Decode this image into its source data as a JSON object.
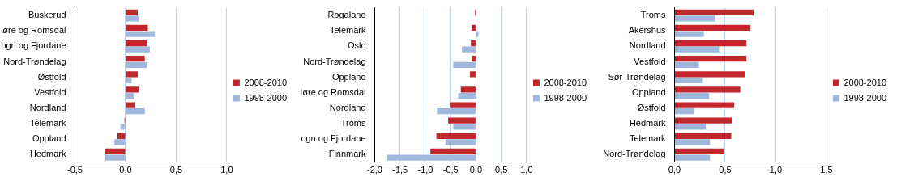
{
  "chart_data": [
    {
      "type": "bar",
      "orientation": "horizontal",
      "grid": true,
      "legend": "right",
      "categories": [
        "Buskerud",
        "Møre og Romsdal",
        "Sogn og Fjordane",
        "Nord-Trøndelag",
        "Østfold",
        "Vestfold",
        "Nordland",
        "Telemark",
        "Oppland",
        "Hedmark"
      ],
      "series": [
        {
          "name": "2008-2010",
          "color": "#c0282e",
          "values": [
            0.12,
            0.22,
            0.21,
            0.19,
            0.12,
            0.13,
            0.09,
            -0.01,
            -0.08,
            -0.2
          ]
        },
        {
          "name": "1998-2000",
          "color": "#9fb8dc",
          "values": [
            0.13,
            0.29,
            0.24,
            0.21,
            0.06,
            0.08,
            0.19,
            -0.05,
            -0.11,
            -0.2
          ]
        }
      ],
      "xlim": [
        -0.5,
        1.0
      ],
      "xticks": [
        {
          "value": -0.5,
          "label": "-0,5"
        },
        {
          "value": 0,
          "label": "0,0"
        },
        {
          "value": 0.5,
          "label": "0,5"
        },
        {
          "value": 1.0,
          "label": "1,0"
        }
      ]
    },
    {
      "type": "bar",
      "orientation": "horizontal",
      "grid": true,
      "legend": "right",
      "categories": [
        "Rogaland",
        "Telemark",
        "Oslo",
        "Nord-Trøndelag",
        "Oppland",
        "Møre og Romsdal",
        "Nordland",
        "Troms",
        "Sogn og Fjordane",
        "Finnmark"
      ],
      "series": [
        {
          "name": "2008-2010",
          "color": "#c0282e",
          "values": [
            -0.02,
            -0.08,
            -0.1,
            -0.08,
            -0.12,
            -0.3,
            -0.5,
            -0.55,
            -0.78,
            -0.9
          ]
        },
        {
          "name": "1998-2000",
          "color": "#9fb8dc",
          "values": [
            0.0,
            0.05,
            -0.28,
            -0.45,
            0.0,
            -0.35,
            -0.77,
            -0.45,
            -0.6,
            -1.75
          ]
        }
      ],
      "xlim": [
        -2.0,
        1.0
      ],
      "xticks": [
        {
          "value": -2.0,
          "label": "-2,0"
        },
        {
          "value": -1.5,
          "label": "-1,5"
        },
        {
          "value": -1.0,
          "label": "-1,0"
        },
        {
          "value": -0.5,
          "label": "-0,5"
        },
        {
          "value": 0,
          "label": "0,0"
        },
        {
          "value": 0.5,
          "label": "0,5"
        },
        {
          "value": 1.0,
          "label": "1,0"
        }
      ]
    },
    {
      "type": "bar",
      "orientation": "horizontal",
      "grid": true,
      "legend": "right",
      "categories": [
        "Troms",
        "Akershus",
        "Nordland",
        "Vestfold",
        "Sør-Trøndelag",
        "Oppland",
        "Østfold",
        "Hedmark",
        "Telemark",
        "Nord-Trøndelag"
      ],
      "series": [
        {
          "name": "2008-2010",
          "color": "#c0282e",
          "values": [
            0.78,
            0.75,
            0.71,
            0.71,
            0.7,
            0.65,
            0.59,
            0.57,
            0.56,
            0.49
          ]
        },
        {
          "name": "1998-2000",
          "color": "#9fb8dc",
          "values": [
            0.4,
            0.29,
            0.44,
            0.24,
            0.28,
            0.34,
            0.19,
            0.31,
            0.35,
            0.35
          ]
        }
      ],
      "xlim": [
        0,
        1.5
      ],
      "xticks": [
        {
          "value": 0,
          "label": "0,0"
        },
        {
          "value": 0.5,
          "label": "0,5"
        },
        {
          "value": 1.0,
          "label": "1,0"
        },
        {
          "value": 1.5,
          "label": "1,5"
        }
      ]
    }
  ]
}
